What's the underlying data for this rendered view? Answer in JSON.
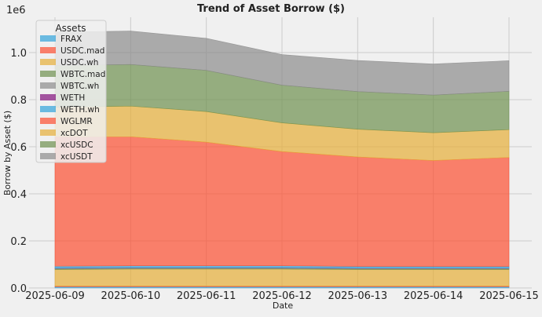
{
  "chart_data": {
    "type": "area",
    "stacked": true,
    "title": "Trend of Asset Borrow ($)",
    "xlabel": "Date",
    "ylabel": "Borrow by Asset ($)",
    "y_offset_text": "1e6",
    "ylim": [
      0,
      1150000
    ],
    "y_ticks": [
      0,
      200000,
      400000,
      600000,
      800000,
      1000000
    ],
    "y_tick_labels": [
      "0.0",
      "0.2",
      "0.4",
      "0.6",
      "0.8",
      "1.0"
    ],
    "x": [
      "2025-06-09",
      "2025-06-10",
      "2025-06-11",
      "2025-06-12",
      "2025-06-13",
      "2025-06-14",
      "2025-06-15"
    ],
    "grid": true,
    "legend": {
      "title": "Assets",
      "position": "top-left"
    },
    "series": [
      {
        "name": "FRAX",
        "color": "#30a2da",
        "values": [
          5000,
          5000,
          5000,
          5000,
          5000,
          5000,
          5000
        ]
      },
      {
        "name": "USDC.mad",
        "color": "#fc4f30",
        "values": [
          3000,
          3000,
          3000,
          3000,
          3000,
          3000,
          3000
        ]
      },
      {
        "name": "USDC.wh",
        "color": "#e5ae38",
        "values": [
          70000,
          72000,
          72000,
          72000,
          70000,
          70000,
          70000
        ]
      },
      {
        "name": "WBTC.mad",
        "color": "#6d904f",
        "values": [
          3000,
          3000,
          3000,
          3000,
          3000,
          3000,
          3000
        ]
      },
      {
        "name": "WBTC.wh",
        "color": "#8b8b8b",
        "values": [
          3000,
          3000,
          3000,
          3000,
          3000,
          3000,
          3000
        ]
      },
      {
        "name": "WETH",
        "color": "#810f7c",
        "values": [
          500,
          500,
          500,
          500,
          500,
          500,
          500
        ]
      },
      {
        "name": "WETH.wh",
        "color": "#30a2da",
        "values": [
          8000,
          8000,
          8000,
          8000,
          7000,
          7000,
          7000
        ]
      },
      {
        "name": "WGLMR",
        "color": "#fc4f30",
        "values": [
          550000,
          548000,
          525000,
          485000,
          465000,
          450000,
          463000
        ]
      },
      {
        "name": "xcDOT",
        "color": "#e5ae38",
        "values": [
          125000,
          130000,
          130000,
          122000,
          118000,
          118000,
          118000
        ]
      },
      {
        "name": "xcUSDC",
        "color": "#6d904f",
        "values": [
          177000,
          177000,
          175000,
          160000,
          160000,
          160000,
          163000
        ]
      },
      {
        "name": "xcUSDT",
        "color": "#8b8b8b",
        "values": [
          142000,
          142000,
          136000,
          130000,
          132000,
          132000,
          130000
        ]
      }
    ]
  }
}
